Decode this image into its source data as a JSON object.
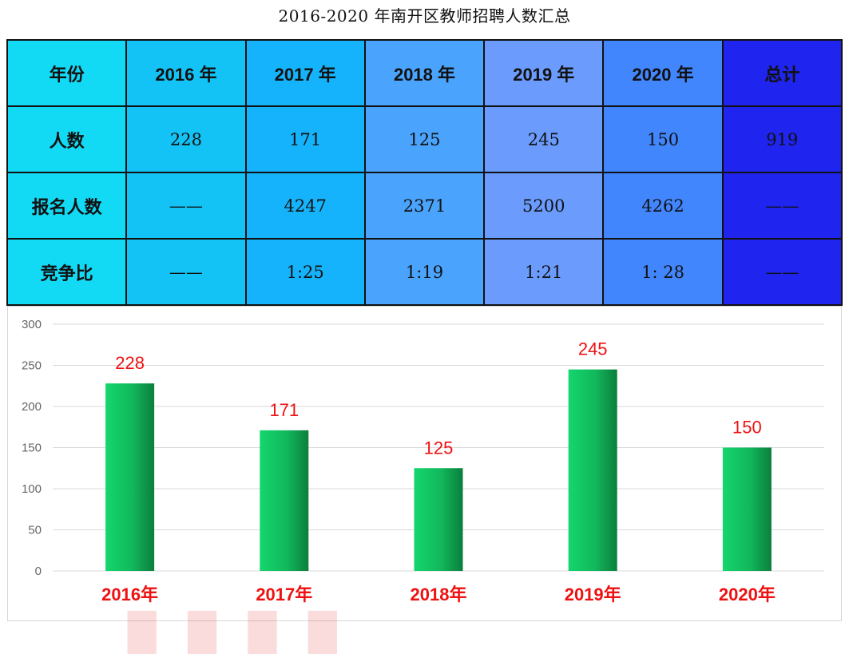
{
  "title": "2016-2020 年南开区教师招聘人数汇总",
  "table": {
    "header": [
      "年份",
      "2016 年",
      "2017 年",
      "2018 年",
      "2019 年",
      "2020 年",
      "总计"
    ],
    "rows": [
      {
        "label": "人数",
        "cells": [
          "228",
          "171",
          "125",
          "245",
          "150",
          "919"
        ]
      },
      {
        "label": "报名人数",
        "cells": [
          "——",
          "4247",
          "2371",
          "5200",
          "4262",
          "——"
        ]
      },
      {
        "label": "竞争比",
        "cells": [
          "——",
          "1:25",
          "1:19",
          "1:21",
          "1: 28",
          "——"
        ]
      }
    ],
    "column_colors": [
      "#12d9f4",
      "#13c3f6",
      "#15b3fb",
      "#4aa3fc",
      "#6a9bfd",
      "#4186fd",
      "#1f24ee"
    ]
  },
  "chart_data": {
    "type": "bar",
    "title": "",
    "categories": [
      "2016年",
      "2017年",
      "2018年",
      "2019年",
      "2020年"
    ],
    "values": [
      228,
      171,
      125,
      245,
      150
    ],
    "data_labels": [
      "228",
      "171",
      "125",
      "245",
      "150"
    ],
    "yticks": [
      "0",
      "50",
      "100",
      "150",
      "200",
      "250",
      "300"
    ],
    "ylim": [
      0,
      300
    ],
    "xlabel": "",
    "ylabel": "",
    "grid": true,
    "legend": "none",
    "colors": {
      "bar_light": "#14d66d",
      "bar_dark": "#0b7e3c",
      "label": "#ee1111",
      "tick": "#666666",
      "grid": "#d9d9d9"
    }
  }
}
